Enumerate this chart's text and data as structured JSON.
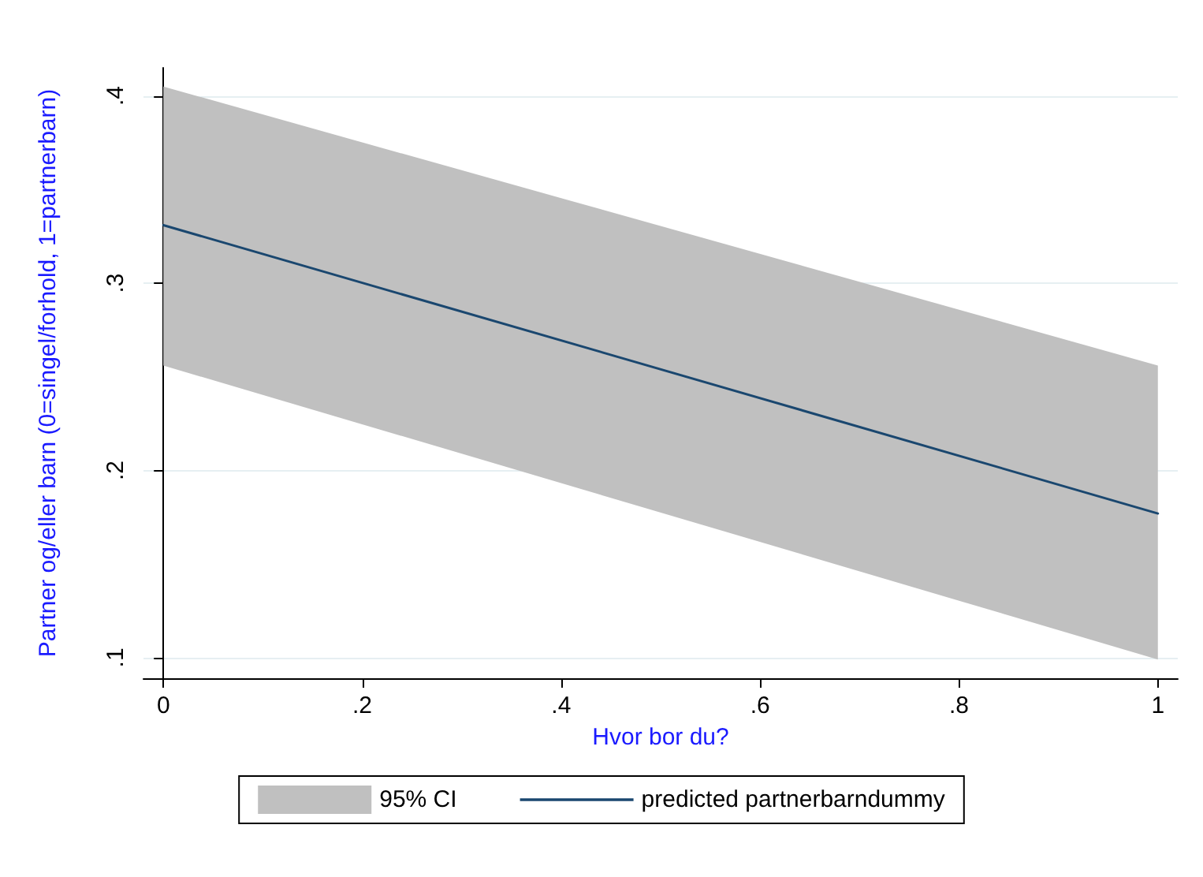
{
  "chart_data": {
    "type": "line",
    "xlabel": "Hvor bor du?",
    "ylabel": "Partner og/eller barn (0=singel/forhold, 1=partnerbarn)",
    "x": [
      0,
      1
    ],
    "series": [
      {
        "type": "area",
        "name": "95% CI",
        "color": "#c0c0c0",
        "values": [
          null,
          null
        ]
      },
      {
        "name": "predicted partnerbarndummy",
        "color": "#1a476f",
        "values": [
          0.331,
          0.177
        ],
        "lower": [
          0.256,
          0.099
        ],
        "upper": [
          0.405,
          0.256
        ]
      }
    ],
    "xlim": [
      -0.02,
      1.02
    ],
    "xticks": [
      0,
      {
        "value": 0.2,
        "label": ".2"
      },
      {
        "value": 0.4,
        "label": ".4"
      },
      {
        "value": 0.6,
        "label": ".6"
      },
      {
        "value": 0.8,
        "label": ".8"
      },
      1
    ],
    "ylim": [
      0.089,
      0.415
    ],
    "yticks": [
      {
        "value": 0.1,
        "label": ".1"
      },
      {
        "value": 0.2,
        "label": ".2"
      },
      {
        "value": 0.3,
        "label": ".3"
      },
      {
        "value": 0.4,
        "label": ".4"
      }
    ],
    "grid": "y",
    "legend": "bottom",
    "marker": "none",
    "line_style": "solid"
  }
}
